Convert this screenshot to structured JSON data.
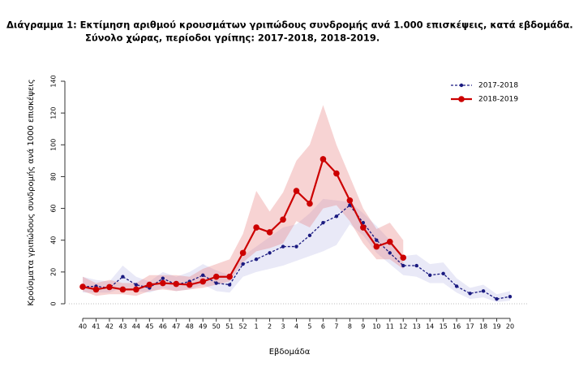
{
  "chart_data": {
    "type": "line",
    "title": "Διάγραμμα 1: Εκτίμηση αριθμού κρουσμάτων γριπώδους συνδρομής ανά 1.000 επισκέψεις, κατά εβδομάδα.",
    "subtitle": "Σύνολο χώρας, περίοδοι γρίπης:  2017-2018, 2018-2019.",
    "x_label": "Εβδομάδα",
    "y_label": "Κρούσματα γριπώδους συνδρομής ανά 1000 επισκέψεις",
    "categories": [
      "40",
      "41",
      "42",
      "43",
      "44",
      "45",
      "46",
      "47",
      "48",
      "49",
      "50",
      "51",
      "52",
      "1",
      "2",
      "3",
      "4",
      "5",
      "6",
      "7",
      "8",
      "9",
      "10",
      "11",
      "12",
      "13",
      "14",
      "15",
      "16",
      "17",
      "18",
      "19",
      "20"
    ],
    "ylim": [
      0,
      140
    ],
    "yticks": [
      0,
      20,
      40,
      60,
      80,
      100,
      120,
      140
    ],
    "legend": "top-right",
    "series": [
      {
        "name": "2017-2018",
        "color": "#1a1a80",
        "band_color": "#9c9cdc",
        "dashed": true,
        "values": [
          10.7,
          11,
          10,
          17,
          12,
          10,
          16,
          12,
          14,
          18,
          13,
          12,
          25,
          28,
          32,
          36,
          36,
          43,
          51,
          55,
          62,
          51,
          40,
          32,
          24,
          24,
          18,
          19,
          11,
          6.5,
          8,
          3,
          4.5
        ],
        "lower": [
          7,
          7,
          7,
          10,
          8,
          7,
          10,
          8,
          9,
          12,
          8,
          7,
          17,
          20,
          22,
          24,
          27,
          30,
          33,
          37,
          50,
          43,
          32,
          25,
          18,
          17,
          13,
          13,
          7,
          3,
          4,
          1,
          2
        ],
        "upper": [
          17,
          15,
          14,
          24,
          17,
          14,
          20,
          17,
          20,
          25,
          21,
          18,
          30,
          36,
          42,
          48,
          50,
          57,
          66,
          65,
          64,
          57,
          49,
          40,
          30,
          31,
          25,
          26,
          16,
          10,
          12,
          6,
          8
        ]
      },
      {
        "name": "2018-2019",
        "color": "#cc0000",
        "band_color": "#e88080",
        "dashed": false,
        "values": [
          10.7,
          9,
          10.5,
          9,
          9,
          12,
          13,
          12.5,
          12,
          14,
          17,
          17,
          32,
          48,
          45,
          53,
          71,
          63,
          91,
          82,
          65,
          48,
          36,
          39,
          29,
          null,
          null,
          null,
          null,
          null,
          null,
          null,
          null
        ],
        "lower": [
          8,
          5,
          6,
          6,
          5,
          8,
          9,
          8,
          9,
          10,
          12,
          14,
          26,
          33,
          35,
          38,
          52,
          48,
          60,
          62,
          52,
          38,
          28,
          28,
          22,
          null,
          null,
          null,
          null,
          null,
          null,
          null,
          null
        ],
        "upper": [
          17,
          13,
          15,
          13,
          13,
          18,
          18,
          18,
          17,
          22,
          25,
          28,
          44,
          71,
          58,
          70,
          90,
          100,
          125,
          100,
          80,
          60,
          47,
          51,
          40,
          null,
          null,
          null,
          null,
          null,
          null,
          null,
          null
        ]
      }
    ]
  }
}
